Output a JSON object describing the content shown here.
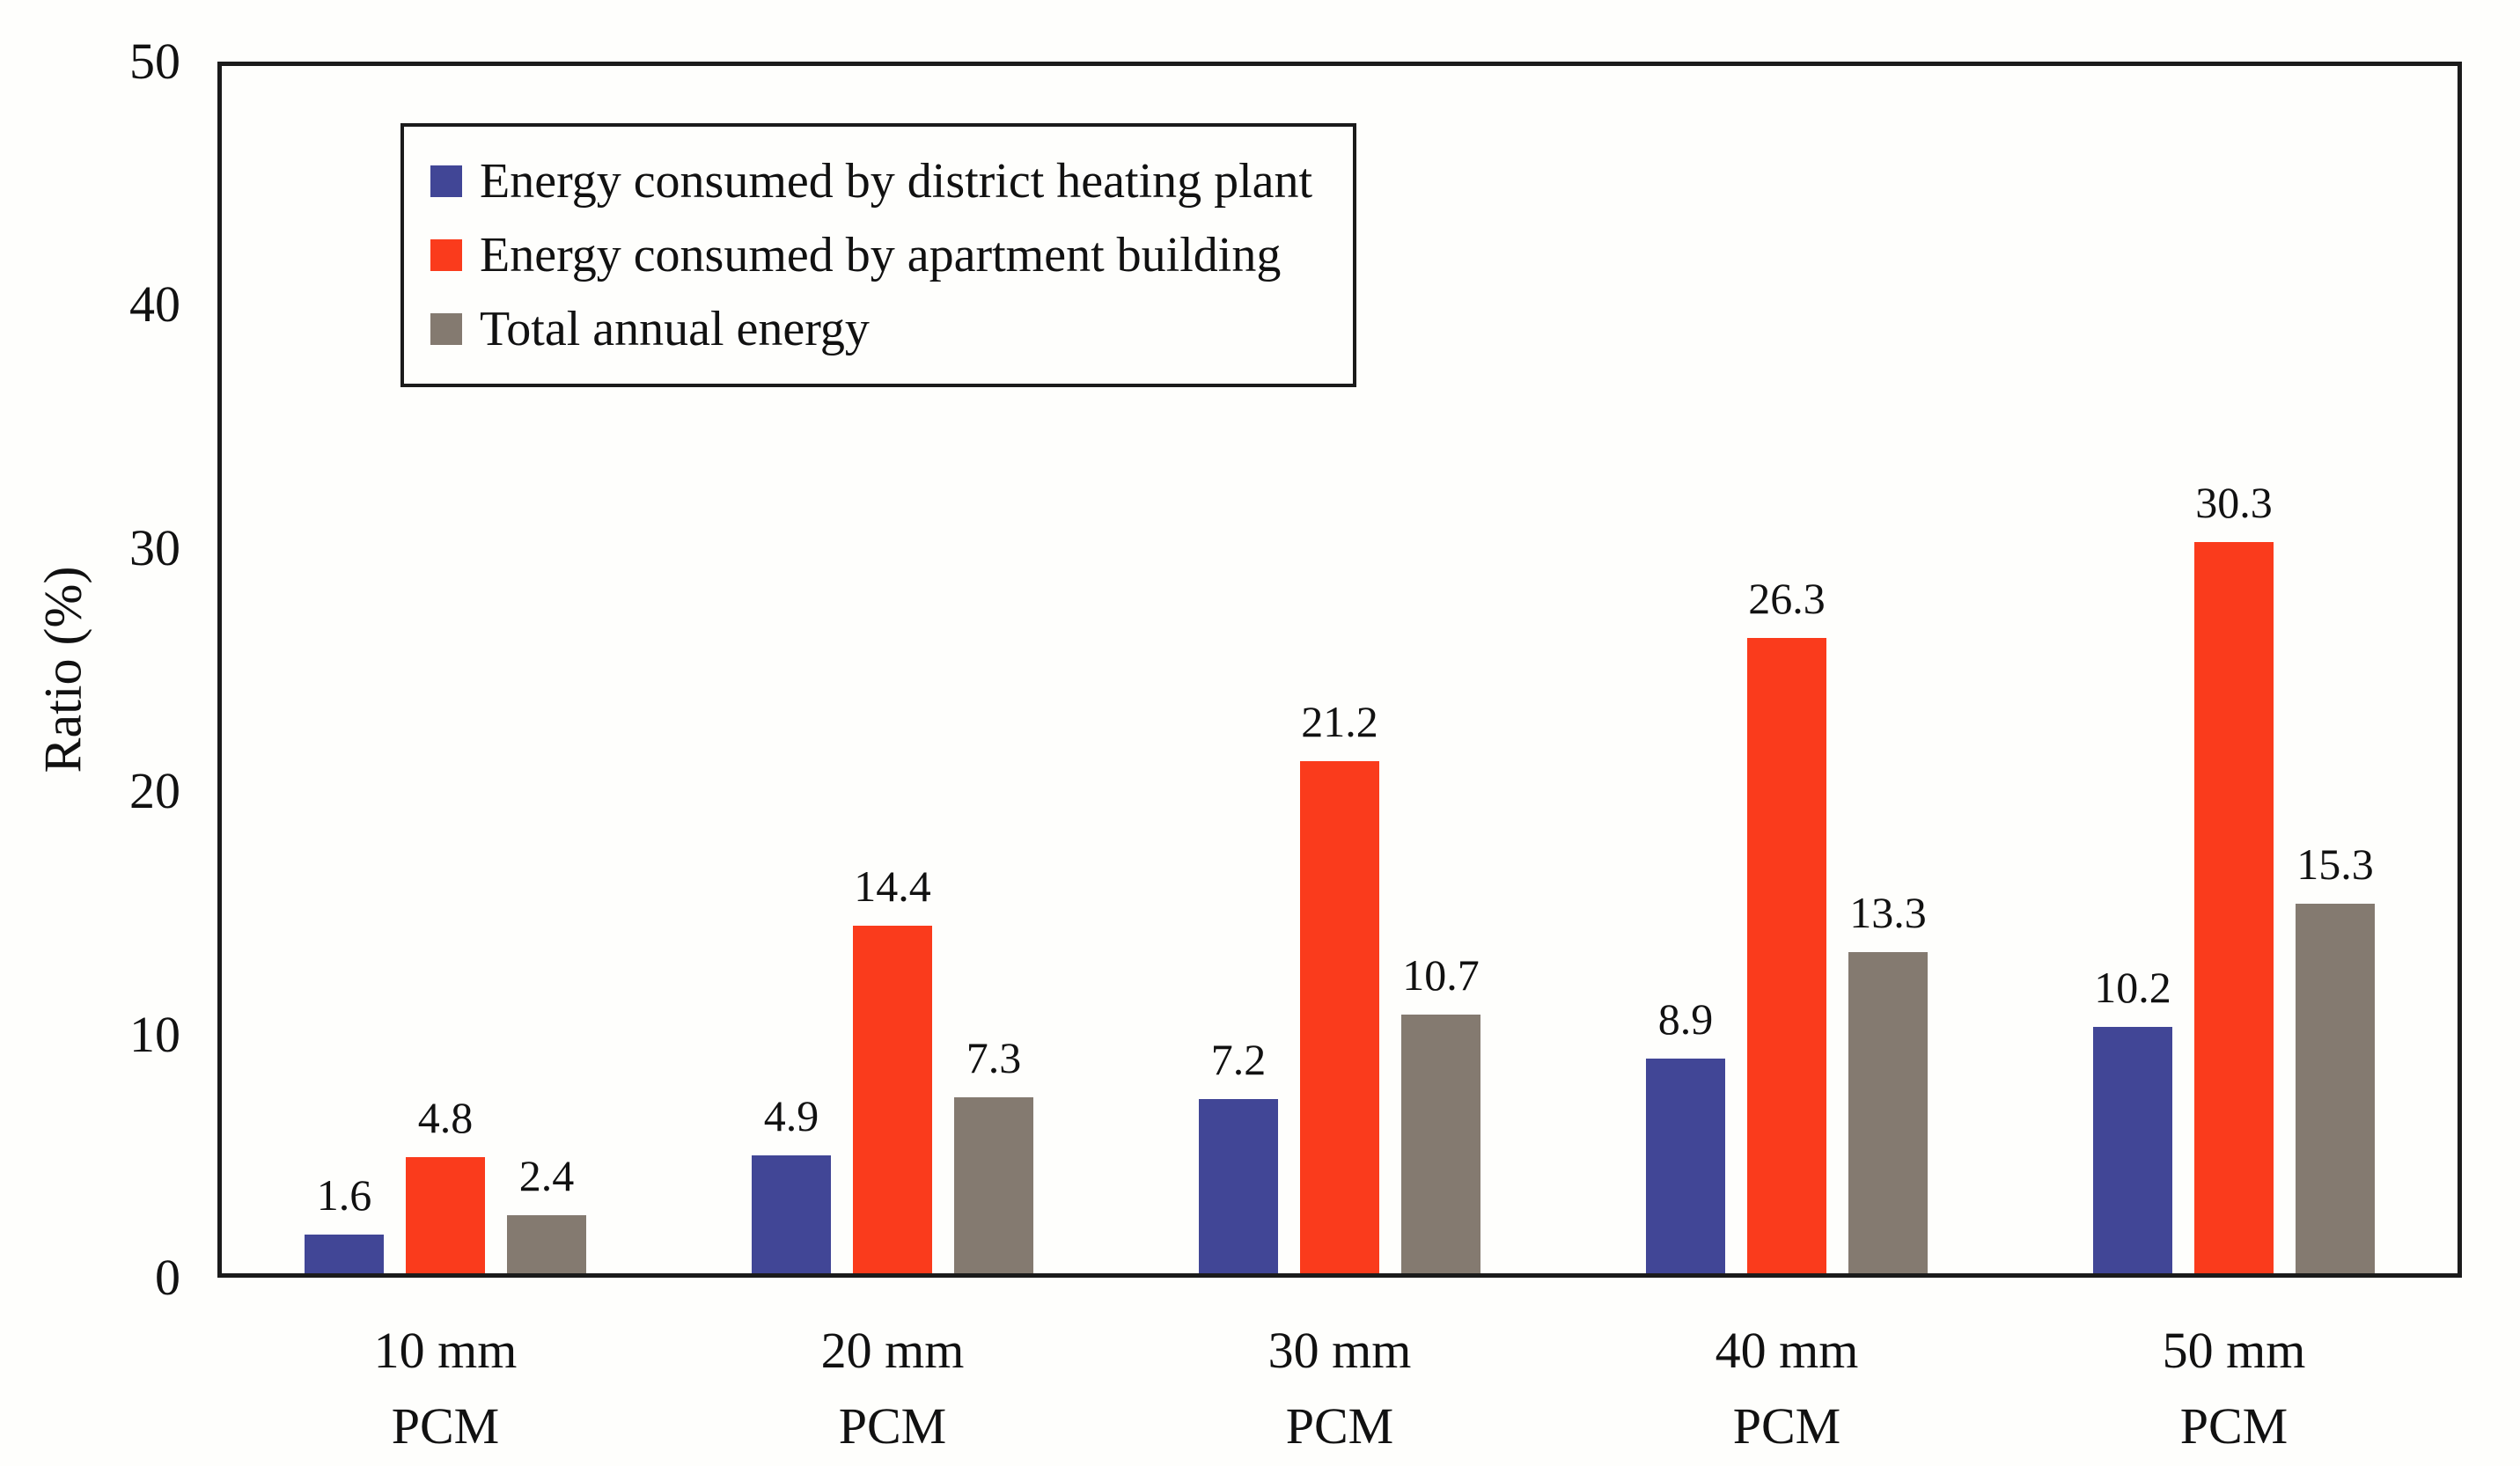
{
  "figure": {
    "background": "#FEFEFC",
    "frame_color": "#1B1B1B",
    "text_color": "#111111"
  },
  "chart_data": {
    "type": "bar",
    "title": "",
    "xlabel": "",
    "ylabel": "Ratio (%)",
    "ylim": [
      0,
      50
    ],
    "yticks": [
      0,
      10,
      20,
      30,
      40,
      50
    ],
    "grid": false,
    "legend_position": "upper-left-inside",
    "value_labels": true,
    "value_labels_decimals": 1,
    "categories": [
      "10 mm PCM",
      "20 mm PCM",
      "30 mm PCM",
      "40 mm PCM",
      "50 mm PCM"
    ],
    "category_lines": [
      [
        "10 mm",
        "PCM"
      ],
      [
        "20 mm",
        "PCM"
      ],
      [
        "30 mm",
        "PCM"
      ],
      [
        "40 mm",
        "PCM"
      ],
      [
        "50 mm",
        "PCM"
      ]
    ],
    "series": [
      {
        "name": "Energy consumed by district heating plant",
        "color": "#414696",
        "values": [
          1.6,
          4.9,
          7.2,
          8.9,
          10.2
        ]
      },
      {
        "name": "Energy consumed by apartment building",
        "color": "#FA3B1C",
        "values": [
          4.8,
          14.4,
          21.2,
          26.3,
          30.3
        ]
      },
      {
        "name": "Total annual energy",
        "color": "#847A70",
        "values": [
          2.4,
          7.3,
          10.7,
          13.3,
          15.3
        ]
      }
    ]
  }
}
